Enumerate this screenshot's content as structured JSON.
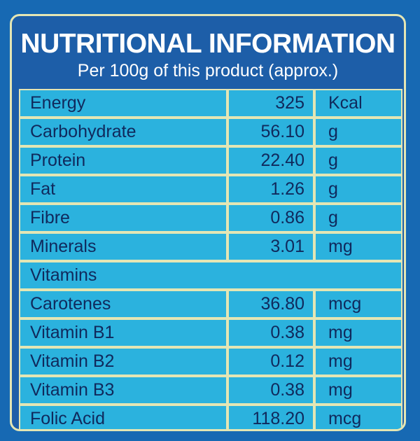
{
  "header": {
    "title": "NUTRITIONAL INFORMATION",
    "subtitle": "Per 100g of this product (approx.)"
  },
  "table": {
    "rows": [
      [
        "Energy",
        "325",
        "Kcal"
      ],
      [
        "Carbohydrate",
        "56.10",
        "g"
      ],
      [
        "Protein",
        "22.40",
        "g"
      ],
      [
        "Fat",
        "1.26",
        "g"
      ],
      [
        "Fibre",
        "0.86",
        "g"
      ],
      [
        "Minerals",
        "3.01",
        "mg"
      ],
      [
        "Vitamins"
      ],
      [
        "Carotenes",
        "36.80",
        "mcg"
      ],
      [
        "Vitamin B1",
        "0.38",
        "mg"
      ],
      [
        "Vitamin B2",
        "0.12",
        "mg"
      ],
      [
        "Vitamin B3",
        "0.38",
        "mg"
      ],
      [
        "Folic Acid",
        "118.20",
        "mcg"
      ]
    ]
  }
}
